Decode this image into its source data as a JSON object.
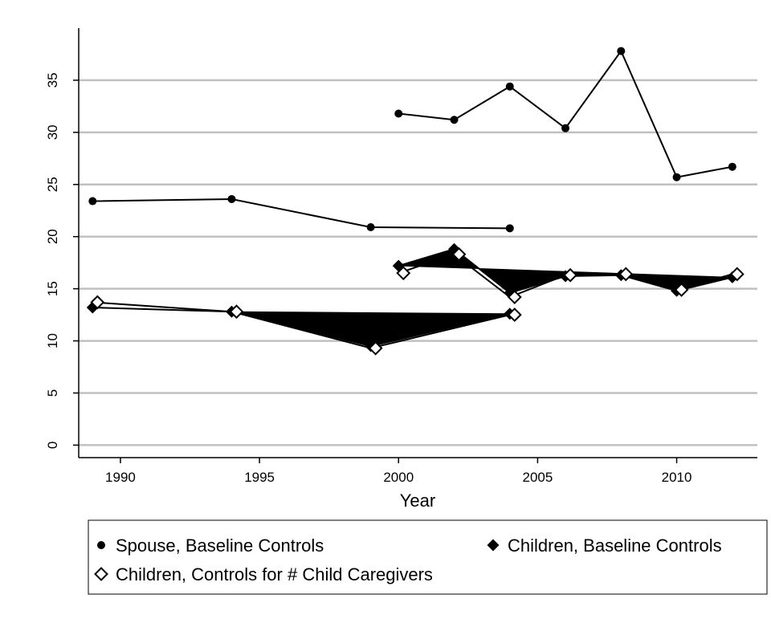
{
  "chart_data": {
    "type": "line",
    "xlabel": "Year",
    "ylabel": "",
    "xlim": [
      1988.5,
      2012.9
    ],
    "ylim": [
      -1.2,
      40
    ],
    "xticks": [
      1990,
      1995,
      2000,
      2005,
      2010
    ],
    "yticks": [
      0,
      5,
      10,
      15,
      20,
      25,
      30,
      35
    ],
    "grid": "horizontal",
    "legend_position": "bottom",
    "series": [
      {
        "name": "Spouse, Baseline Controls",
        "marker": "filled-circle",
        "segments": [
          [
            [
              1989,
              23.4
            ],
            [
              1994,
              23.6
            ],
            [
              1999,
              20.9
            ],
            [
              2004,
              20.8
            ]
          ],
          [
            [
              2000,
              31.8
            ],
            [
              2002,
              31.2
            ],
            [
              2004,
              34.4
            ],
            [
              2006,
              30.4
            ],
            [
              2008,
              37.8
            ],
            [
              2010,
              25.7
            ],
            [
              2012,
              26.7
            ]
          ]
        ]
      },
      {
        "name": "Children, Baseline Controls",
        "marker": "filled-diamond",
        "segments": [
          [
            [
              1989,
              13.2
            ],
            [
              1994,
              12.8
            ],
            [
              1999,
              9.5
            ],
            [
              2004,
              12.6
            ]
          ],
          [
            [
              2000,
              17.2
            ],
            [
              2002,
              18.8
            ],
            [
              2004,
              14.6
            ],
            [
              2006,
              16.2
            ],
            [
              2008,
              16.3
            ],
            [
              2010,
              14.8
            ],
            [
              2012,
              16.1
            ]
          ]
        ]
      },
      {
        "name": "Children, Controls for # Child Caregivers",
        "marker": "hollow-diamond",
        "segments": [
          [
            [
              1989,
              13.7
            ],
            [
              1994,
              12.8
            ],
            [
              1999,
              9.3
            ],
            [
              2004,
              12.5
            ]
          ],
          [
            [
              2000,
              16.5
            ],
            [
              2002,
              18.3
            ],
            [
              2004,
              14.2
            ],
            [
              2006,
              16.3
            ],
            [
              2008,
              16.4
            ],
            [
              2010,
              14.9
            ],
            [
              2012,
              16.4
            ]
          ]
        ]
      }
    ],
    "annotations": "Shaded polygons connect the Children series: region spanning (1994,12.8),(1999,9.5),(2004,12.6) and (2000,17.2),(2002,18.8),(2004,14.6),(2006,16.2),(2008,16.3),(2010,14.8),(2012,16.1)"
  }
}
